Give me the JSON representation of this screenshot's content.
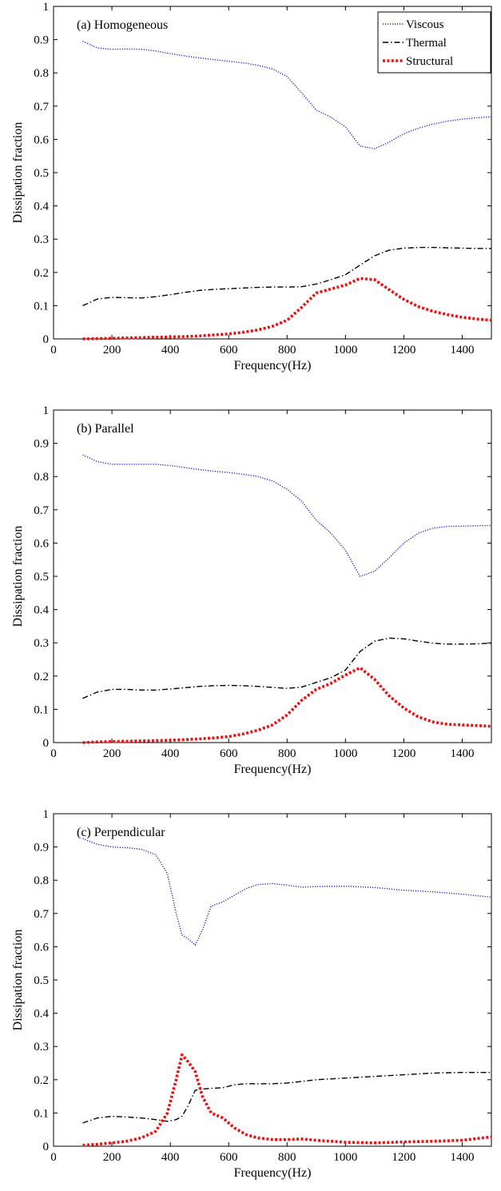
{
  "figure": {
    "legend_entries": [
      "Viscous",
      "Thermal",
      "Structural"
    ]
  },
  "series_styles": {
    "Viscous": {
      "color": "#1f1fdd",
      "dash": "dotted",
      "width": 1.4
    },
    "Thermal": {
      "color": "#000000",
      "dash": "dashdot",
      "width": 1.4
    },
    "Structural": {
      "color": "#ee1111",
      "dash": "dotted-thick",
      "width": 3.6
    }
  },
  "chart_data": [
    {
      "type": "line",
      "title": "(a) Homogeneous",
      "xlabel": "Frequency(Hz)",
      "ylabel": "Dissipation fraction",
      "xlim": [
        0,
        1500
      ],
      "ylim": [
        0,
        1
      ],
      "xticks": [
        0,
        200,
        400,
        600,
        800,
        1000,
        1200,
        1400
      ],
      "yticks": [
        0,
        0.1,
        0.2,
        0.3,
        0.4,
        0.5,
        0.6,
        0.7,
        0.8,
        0.9,
        1
      ],
      "grid": false,
      "legend": "top-right",
      "series": [
        {
          "name": "Viscous",
          "x": [
            100,
            150,
            200,
            250,
            300,
            350,
            400,
            450,
            500,
            550,
            600,
            650,
            700,
            750,
            800,
            850,
            900,
            950,
            1000,
            1050,
            1100,
            1150,
            1200,
            1250,
            1300,
            1350,
            1400,
            1450,
            1500
          ],
          "y": [
            0.895,
            0.875,
            0.871,
            0.872,
            0.871,
            0.866,
            0.858,
            0.851,
            0.845,
            0.84,
            0.835,
            0.83,
            0.823,
            0.812,
            0.789,
            0.74,
            0.688,
            0.667,
            0.638,
            0.58,
            0.572,
            0.592,
            0.617,
            0.634,
            0.646,
            0.655,
            0.661,
            0.665,
            0.668
          ]
        },
        {
          "name": "Thermal",
          "x": [
            100,
            150,
            200,
            250,
            300,
            350,
            400,
            450,
            500,
            550,
            600,
            650,
            700,
            750,
            800,
            850,
            900,
            950,
            1000,
            1050,
            1100,
            1150,
            1200,
            1250,
            1300,
            1350,
            1400,
            1450,
            1500
          ],
          "y": [
            0.1,
            0.12,
            0.125,
            0.124,
            0.123,
            0.127,
            0.133,
            0.14,
            0.146,
            0.149,
            0.151,
            0.153,
            0.155,
            0.156,
            0.156,
            0.157,
            0.165,
            0.178,
            0.193,
            0.222,
            0.25,
            0.267,
            0.273,
            0.275,
            0.275,
            0.274,
            0.273,
            0.272,
            0.272
          ]
        },
        {
          "name": "Structural",
          "x": [
            100,
            150,
            200,
            250,
            300,
            350,
            400,
            450,
            500,
            550,
            600,
            650,
            700,
            750,
            800,
            850,
            900,
            950,
            1000,
            1050,
            1100,
            1150,
            1200,
            1250,
            1300,
            1350,
            1400,
            1450,
            1500
          ],
          "y": [
            0.0,
            0.001,
            0.002,
            0.003,
            0.004,
            0.005,
            0.006,
            0.007,
            0.009,
            0.012,
            0.015,
            0.02,
            0.027,
            0.038,
            0.056,
            0.095,
            0.138,
            0.15,
            0.162,
            0.182,
            0.178,
            0.148,
            0.119,
            0.097,
            0.083,
            0.073,
            0.065,
            0.06,
            0.056
          ]
        }
      ]
    },
    {
      "type": "line",
      "title": "(b) Parallel",
      "xlabel": "Frequency(Hz)",
      "ylabel": "Dissipation fraction",
      "xlim": [
        0,
        1500
      ],
      "ylim": [
        0,
        1
      ],
      "xticks": [
        0,
        200,
        400,
        600,
        800,
        1000,
        1200,
        1400
      ],
      "yticks": [
        0,
        0.1,
        0.2,
        0.3,
        0.4,
        0.5,
        0.6,
        0.7,
        0.8,
        0.9,
        1
      ],
      "grid": false,
      "series": [
        {
          "name": "Viscous",
          "x": [
            100,
            150,
            200,
            250,
            300,
            350,
            400,
            450,
            500,
            550,
            600,
            650,
            700,
            750,
            800,
            850,
            900,
            950,
            1000,
            1050,
            1100,
            1150,
            1200,
            1250,
            1300,
            1350,
            1400,
            1450,
            1500
          ],
          "y": [
            0.865,
            0.845,
            0.837,
            0.837,
            0.837,
            0.837,
            0.833,
            0.827,
            0.821,
            0.816,
            0.812,
            0.807,
            0.8,
            0.787,
            0.762,
            0.726,
            0.669,
            0.63,
            0.578,
            0.5,
            0.515,
            0.556,
            0.6,
            0.63,
            0.645,
            0.65,
            0.651,
            0.652,
            0.653
          ]
        },
        {
          "name": "Thermal",
          "x": [
            100,
            150,
            200,
            250,
            300,
            350,
            400,
            450,
            500,
            550,
            600,
            650,
            700,
            750,
            800,
            850,
            900,
            950,
            1000,
            1050,
            1100,
            1150,
            1200,
            1250,
            1300,
            1350,
            1400,
            1450,
            1500
          ],
          "y": [
            0.133,
            0.152,
            0.16,
            0.16,
            0.158,
            0.158,
            0.161,
            0.165,
            0.169,
            0.171,
            0.172,
            0.171,
            0.169,
            0.166,
            0.163,
            0.167,
            0.181,
            0.195,
            0.218,
            0.274,
            0.305,
            0.314,
            0.312,
            0.305,
            0.299,
            0.296,
            0.296,
            0.297,
            0.299
          ]
        },
        {
          "name": "Structural",
          "x": [
            100,
            150,
            200,
            250,
            300,
            350,
            400,
            450,
            500,
            550,
            600,
            650,
            700,
            750,
            800,
            850,
            900,
            950,
            1000,
            1050,
            1100,
            1150,
            1200,
            1250,
            1300,
            1350,
            1400,
            1450,
            1500
          ],
          "y": [
            0.0,
            0.002,
            0.003,
            0.004,
            0.005,
            0.006,
            0.007,
            0.009,
            0.011,
            0.014,
            0.018,
            0.026,
            0.037,
            0.053,
            0.083,
            0.127,
            0.16,
            0.178,
            0.203,
            0.225,
            0.19,
            0.14,
            0.104,
            0.077,
            0.062,
            0.055,
            0.053,
            0.051,
            0.049
          ]
        }
      ]
    },
    {
      "type": "line",
      "title": "(c) Perpendicular",
      "xlabel": "Frequency(Hz)",
      "ylabel": "Dissipation fraction",
      "xlim": [
        0,
        1500
      ],
      "ylim": [
        0,
        1
      ],
      "xticks": [
        0,
        200,
        400,
        600,
        800,
        1000,
        1200,
        1400
      ],
      "yticks": [
        0,
        0.1,
        0.2,
        0.3,
        0.4,
        0.5,
        0.6,
        0.7,
        0.8,
        0.9,
        1
      ],
      "grid": false,
      "series": [
        {
          "name": "Viscous",
          "x": [
            100,
            150,
            200,
            250,
            300,
            350,
            390,
            420,
            440,
            460,
            485,
            510,
            540,
            580,
            620,
            660,
            700,
            750,
            800,
            850,
            900,
            1000,
            1100,
            1200,
            1300,
            1400,
            1500
          ],
          "y": [
            0.925,
            0.908,
            0.9,
            0.898,
            0.893,
            0.877,
            0.82,
            0.7,
            0.635,
            0.625,
            0.605,
            0.65,
            0.722,
            0.735,
            0.755,
            0.775,
            0.787,
            0.79,
            0.785,
            0.779,
            0.781,
            0.782,
            0.778,
            0.77,
            0.765,
            0.758,
            0.749
          ]
        },
        {
          "name": "Thermal",
          "x": [
            100,
            150,
            200,
            250,
            300,
            350,
            390,
            420,
            440,
            460,
            485,
            510,
            540,
            580,
            620,
            660,
            700,
            750,
            800,
            850,
            900,
            1000,
            1100,
            1200,
            1300,
            1400,
            1500
          ],
          "y": [
            0.07,
            0.085,
            0.09,
            0.088,
            0.085,
            0.08,
            0.075,
            0.08,
            0.09,
            0.12,
            0.168,
            0.172,
            0.174,
            0.176,
            0.185,
            0.188,
            0.188,
            0.188,
            0.19,
            0.195,
            0.2,
            0.205,
            0.21,
            0.215,
            0.22,
            0.222,
            0.222
          ]
        },
        {
          "name": "Structural",
          "x": [
            100,
            150,
            200,
            250,
            300,
            350,
            390,
            420,
            440,
            460,
            485,
            510,
            540,
            580,
            620,
            660,
            700,
            750,
            800,
            850,
            900,
            1000,
            1100,
            1200,
            1300,
            1400,
            1500
          ],
          "y": [
            0.003,
            0.006,
            0.01,
            0.015,
            0.025,
            0.045,
            0.1,
            0.2,
            0.275,
            0.255,
            0.225,
            0.15,
            0.1,
            0.085,
            0.055,
            0.035,
            0.025,
            0.02,
            0.02,
            0.022,
            0.018,
            0.012,
            0.01,
            0.013,
            0.015,
            0.018,
            0.028
          ]
        }
      ]
    }
  ]
}
